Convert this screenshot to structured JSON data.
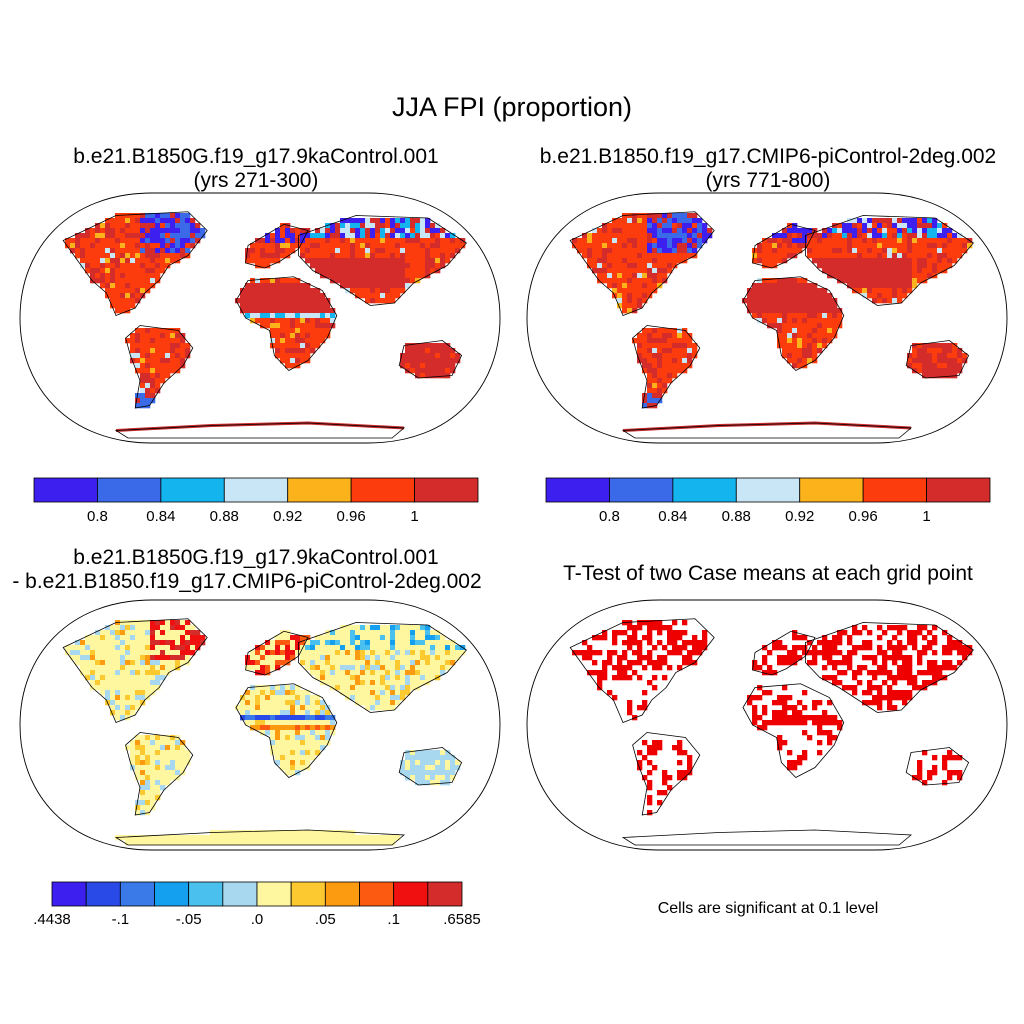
{
  "title": "JJA FPI (proportion)",
  "panels": [
    {
      "id": "case1",
      "title_line1": "b.e21.B1850G.f19_g17.9kaControl.001",
      "title_line2": "(yrs 271-300)"
    },
    {
      "id": "case2",
      "title_line1": "b.e21.B1850.f19_g17.CMIP6-piControl-2deg.002",
      "title_line2": "(yrs 771-800)"
    },
    {
      "id": "diff",
      "title_line1": "b.e21.B1850G.f19_g17.9kaControl.001",
      "title_line2": "- b.e21.B1850.f19_g17.CMIP6-piControl-2deg.002"
    },
    {
      "id": "ttest",
      "title_line1": "T-Test of two Case means at each grid point",
      "title_line2": "",
      "note": "Cells are significant at 0.1 level"
    }
  ],
  "colorbars": {
    "fpi": {
      "colors": [
        "#3d1ff0",
        "#3a6ae8",
        "#14b4ee",
        "#c8e6f6",
        "#fbb21b",
        "#fc3c0c",
        "#d42b2b"
      ],
      "labels": [
        "0.8",
        "0.84",
        "0.88",
        "0.92",
        "0.96",
        "1"
      ]
    },
    "diff": {
      "colors": [
        "#3d1ff0",
        "#2a4ae8",
        "#3a7ae8",
        "#14a0ee",
        "#4ac0ee",
        "#a8d8f0",
        "#fff7a0",
        "#fcca30",
        "#fc9a10",
        "#fc5a10",
        "#f01010",
        "#d42b2b"
      ],
      "labels": [
        ".4438",
        "-.1",
        "-.05",
        ".0",
        ".05",
        ".1",
        ".6585"
      ]
    }
  },
  "legend_colors": {
    "significant": "#ee0000",
    "land_fpi_dominant": "#fc3c0c",
    "land_diff_dominant": "#fff7a0"
  }
}
